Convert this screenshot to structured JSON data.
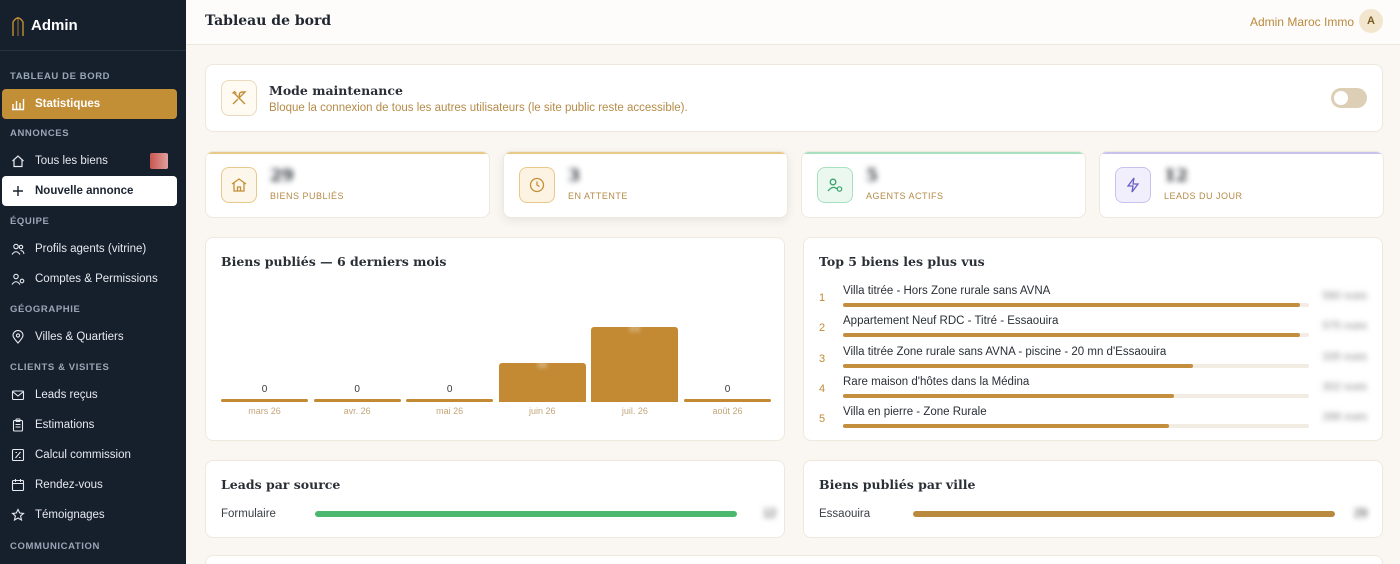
{
  "brand": {
    "name": "Admin"
  },
  "sidebar": {
    "sections": [
      {
        "title": "TABLEAU DE BORD",
        "items": [
          {
            "label": "Statistiques",
            "icon": "bar-chart-icon",
            "state": "active"
          }
        ]
      },
      {
        "title": "ANNONCES",
        "items": [
          {
            "label": "Tous les biens",
            "icon": "home-icon",
            "state": "normal"
          },
          {
            "label": "Nouvelle annonce",
            "icon": "plus-icon",
            "state": "highlight"
          }
        ]
      },
      {
        "title": "ÉQUIPE",
        "items": [
          {
            "label": "Profils agents (vitrine)",
            "icon": "users-icon",
            "state": "normal"
          },
          {
            "label": "Comptes & Permissions",
            "icon": "users-cog-icon",
            "state": "normal"
          }
        ]
      },
      {
        "title": "GÉOGRAPHIE",
        "items": [
          {
            "label": "Villes & Quartiers",
            "icon": "map-pin-icon",
            "state": "normal"
          }
        ]
      },
      {
        "title": "CLIENTS & VISITES",
        "items": [
          {
            "label": "Leads reçus",
            "icon": "mail-icon",
            "state": "normal"
          },
          {
            "label": "Estimations",
            "icon": "clipboard-icon",
            "state": "normal"
          },
          {
            "label": "Calcul commission",
            "icon": "calculator-icon",
            "state": "normal"
          },
          {
            "label": "Rendez-vous",
            "icon": "calendar-icon",
            "state": "normal"
          },
          {
            "label": "Témoignages",
            "icon": "star-icon",
            "state": "normal"
          }
        ]
      },
      {
        "title": "COMMUNICATION",
        "items": []
      }
    ]
  },
  "header": {
    "title": "Tableau de bord",
    "user_name": "Admin Maroc Immo",
    "avatar_initial": "A"
  },
  "maintenance": {
    "title": "Mode maintenance",
    "description": "Bloque la connexion de tous les autres utilisateurs (le site public reste accessible).",
    "enabled": false,
    "icon": "tools-icon"
  },
  "stats": [
    {
      "value": "29",
      "label": "BIENS PUBLIÉS",
      "icon": "building-icon",
      "accent": "#e8c98a",
      "icon_bg": "#fdf6ea"
    },
    {
      "value": "3",
      "label": "EN ATTENTE",
      "icon": "clock-icon",
      "accent": "#e8c98a",
      "icon_bg": "#fdf3e2"
    },
    {
      "value": "5",
      "label": "AGENTS ACTIFS",
      "icon": "user-check-icon",
      "accent": "#a8e0c0",
      "icon_bg": "#eaf8f0"
    },
    {
      "value": "12",
      "label": "LEADS DU JOUR",
      "icon": "bolt-icon",
      "accent": "#c9c2ef",
      "icon_bg": "#f1effc"
    }
  ],
  "monthly_chart": {
    "title": "Biens publiés — 6 derniers mois",
    "chart_data": {
      "type": "bar",
      "categories": [
        "mars 26",
        "avr. 26",
        "mai 26",
        "juin 26",
        "juil. 26",
        "août 26"
      ],
      "values": [
        0,
        0,
        0,
        11,
        21,
        0
      ],
      "value_labels": [
        "0",
        "0",
        "0",
        "11",
        "21",
        "0"
      ],
      "ylim": [
        0,
        24
      ]
    }
  },
  "top_viewed": {
    "title": "Top 5 biens les plus vus",
    "items": [
      {
        "rank": "1",
        "name": "Villa titrée - Hors Zone rurale sans AVNA",
        "views": "580 vues",
        "ratio": 0.98
      },
      {
        "rank": "2",
        "name": "Appartement Neuf RDC - Titré - Essaouira",
        "views": "575 vues",
        "ratio": 0.98
      },
      {
        "rank": "3",
        "name": "Villa titrée Zone rurale sans AVNA - piscine - 20 mn d'Essaouira",
        "views": "335 vues",
        "ratio": 0.75
      },
      {
        "rank": "4",
        "name": "Rare maison d'hôtes dans la Médina",
        "views": "302 vues",
        "ratio": 0.71
      },
      {
        "rank": "5",
        "name": "Villa en pierre - Zone Rurale",
        "views": "288 vues",
        "ratio": 0.7
      }
    ]
  },
  "leads_source": {
    "title": "Leads par source",
    "rows": [
      {
        "label": "Formulaire",
        "value": "12",
        "ratio": 1.0,
        "color": "#4cb86f"
      }
    ]
  },
  "city": {
    "title": "Biens publiés par ville",
    "rows": [
      {
        "label": "Essaouira",
        "value": "29",
        "ratio": 1.0,
        "color": "#b98a3e"
      }
    ]
  }
}
